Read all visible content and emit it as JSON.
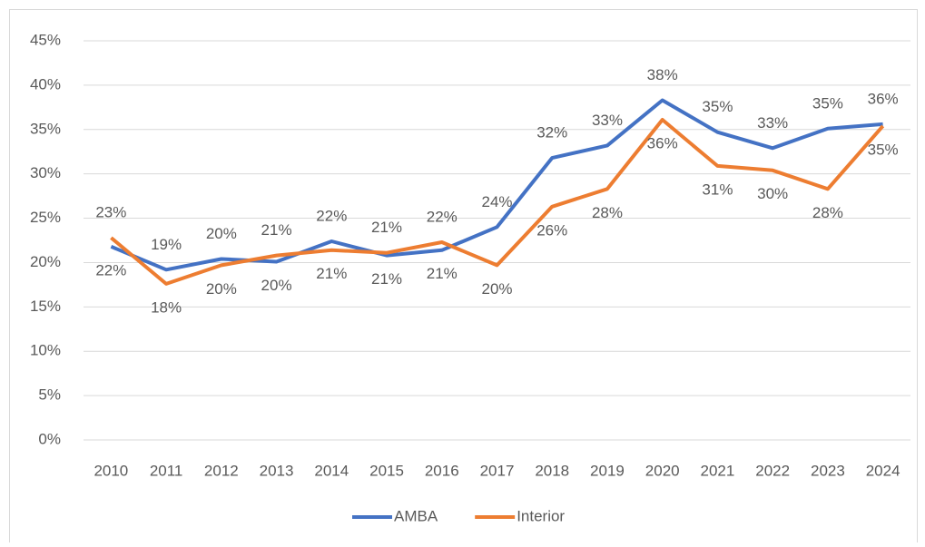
{
  "chart_data": {
    "type": "line",
    "categories": [
      "2010",
      "2011",
      "2012",
      "2013",
      "2014",
      "2015",
      "2016",
      "2017",
      "2018",
      "2019",
      "2020",
      "2021",
      "2022",
      "2023",
      "2024"
    ],
    "series": [
      {
        "name": "AMBA",
        "color": "#4472c4",
        "values": [
          21.8,
          19.2,
          20.4,
          20.1,
          22.4,
          20.8,
          21.4,
          24.0,
          31.8,
          33.2,
          38.3,
          34.7,
          32.9,
          35.1,
          35.6
        ],
        "value_labels": [
          "22%",
          "19%",
          "20%",
          "20%",
          "22%",
          "21%",
          "21%",
          "24%",
          "32%",
          "33%",
          "38%",
          "35%",
          "33%",
          "35%",
          "36%"
        ]
      },
      {
        "name": "Interior",
        "color": "#ed7d31",
        "values": [
          22.8,
          17.6,
          19.7,
          20.8,
          21.4,
          21.1,
          22.3,
          19.7,
          26.3,
          28.3,
          36.1,
          30.9,
          30.4,
          28.3,
          35.4
        ],
        "value_labels": [
          "23%",
          "18%",
          "20%",
          "21%",
          "21%",
          "21%",
          "22%",
          "20%",
          "26%",
          "28%",
          "36%",
          "31%",
          "30%",
          "28%",
          "35%"
        ]
      }
    ],
    "ylim": [
      0,
      45
    ],
    "yticks": [
      {
        "value": 0,
        "label": "0%"
      },
      {
        "value": 5,
        "label": "5%"
      },
      {
        "value": 10,
        "label": "10%"
      },
      {
        "value": 15,
        "label": "15%"
      },
      {
        "value": 20,
        "label": "20%"
      },
      {
        "value": 25,
        "label": "25%"
      },
      {
        "value": 30,
        "label": "30%"
      },
      {
        "value": 35,
        "label": "35%"
      },
      {
        "value": 40,
        "label": "40%"
      },
      {
        "value": 45,
        "label": "45%"
      }
    ],
    "grid": true,
    "legend": "bottom"
  }
}
